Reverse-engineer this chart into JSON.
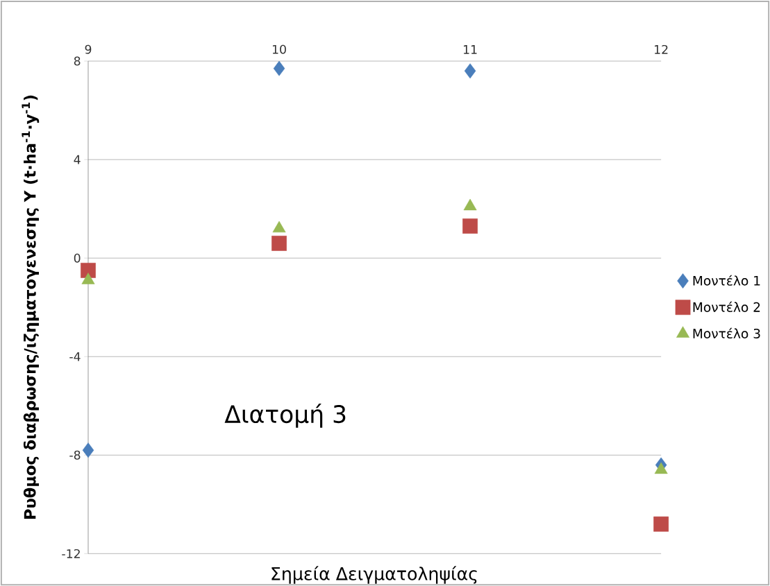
{
  "chart_data": {
    "type": "scatter",
    "xlabel": "Σημεία Δειγματοληψίας",
    "ylabel": "Ρυθμος διαβρωσης/ιζηματογενεσης  Υ (t·ha$^{-1}$·y$^{-1}$)",
    "annotations": [
      "Διατομή 3"
    ],
    "x": [
      9,
      10,
      11,
      12
    ],
    "series": [
      {
        "name": "Μοντέλο 1",
        "color": "#4a7ebb",
        "marker": "diamond",
        "values": [
          -7.8,
          7.7,
          7.6,
          -8.4
        ]
      },
      {
        "name": "Μοντέλο 2",
        "color": "#be4b48",
        "marker": "square",
        "values": [
          -0.5,
          0.6,
          1.3,
          -10.8
        ]
      },
      {
        "name": "Μοντέλο 3",
        "color": "#98b954",
        "marker": "triangle",
        "values": [
          -0.9,
          1.2,
          2.1,
          -8.6
        ]
      }
    ],
    "xlim": [
      9,
      12
    ],
    "xticks": [
      9,
      10,
      11,
      12
    ],
    "ylim": [
      -12,
      8
    ],
    "yticks": [
      -12,
      -8,
      -4,
      0,
      4,
      8
    ],
    "grid": "y",
    "legend": "right"
  }
}
